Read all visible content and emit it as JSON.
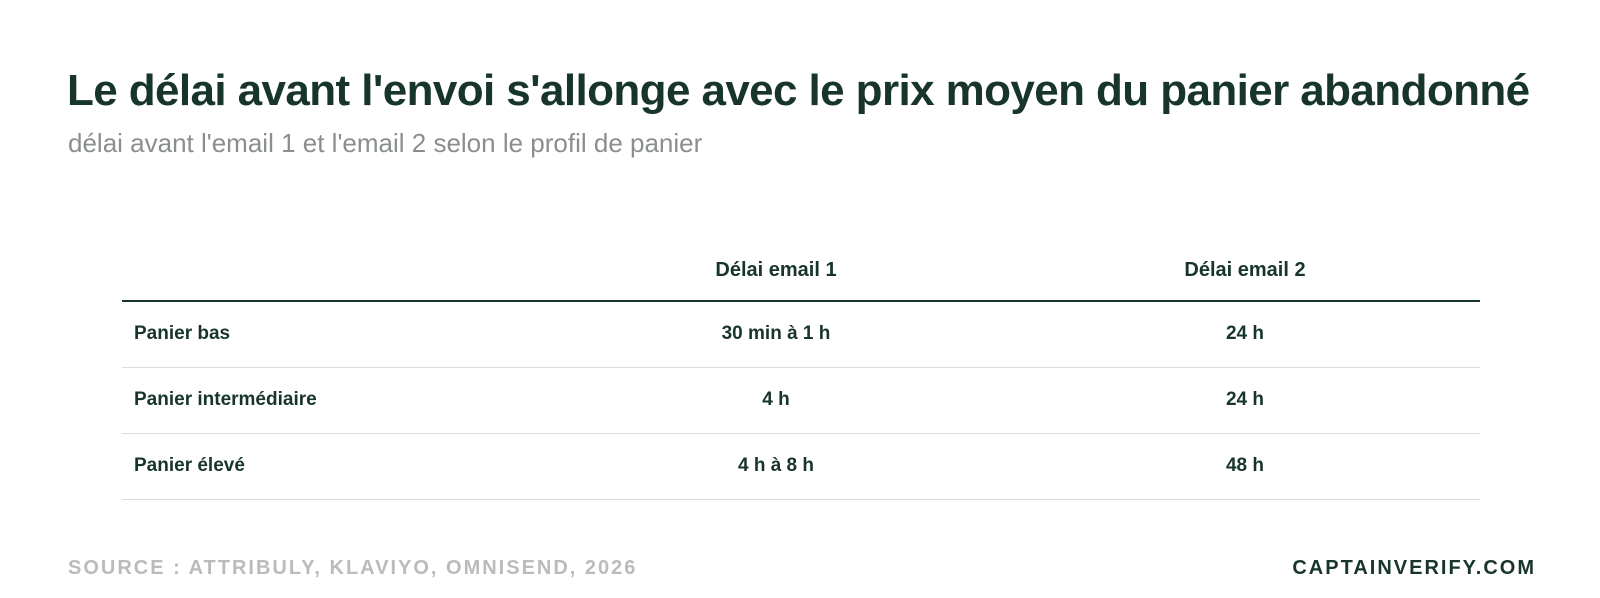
{
  "header": {
    "title": "Le délai avant l'envoi s'allonge avec le prix moyen du panier abandonné",
    "subtitle": "délai avant l'email 1 et l'email 2 selon le profil de panier"
  },
  "chart_data": {
    "type": "table",
    "title": "Le délai avant l'envoi s'allonge avec le prix moyen du panier abandonné",
    "subtitle": "délai avant l'email 1 et l'email 2 selon le profil de panier",
    "columns": [
      "",
      "Délai email 1",
      "Délai email 2"
    ],
    "rows": [
      {
        "label": "Panier bas",
        "email1": "30 min à 1 h",
        "email2": "24 h"
      },
      {
        "label": "Panier intermédiaire",
        "email1": "4 h",
        "email2": "24 h"
      },
      {
        "label": "Panier élevé",
        "email1": "4 h à 8 h",
        "email2": "48 h"
      }
    ]
  },
  "footer": {
    "source": "SOURCE : ATTRIBULY, KLAVIYO, OMNISEND, 2026",
    "brand": "CAPTAINVERIFY.COM"
  },
  "colors": {
    "text_dark": "#173528",
    "subtitle_gray": "#8a8f8c",
    "source_gray": "#b9bcba",
    "row_divider": "#dcdcdc"
  }
}
